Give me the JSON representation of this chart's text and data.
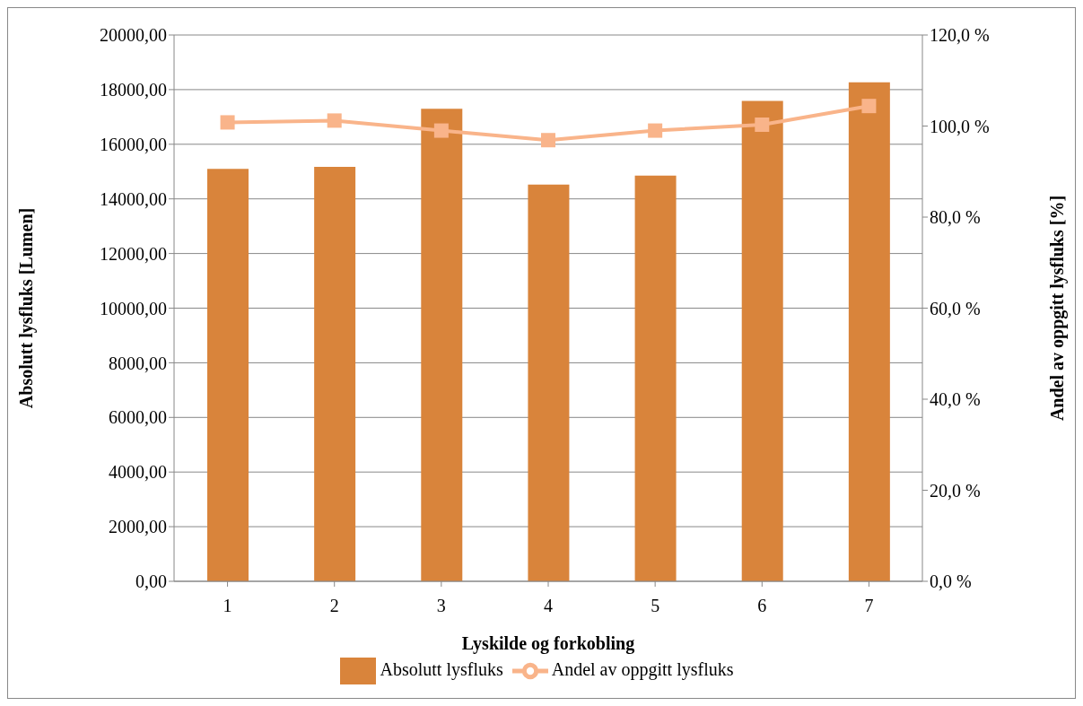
{
  "chart_data": {
    "type": "bar",
    "xlabel": "Lyskilde og forkobling",
    "ylabel": "Absolutt lysfluks [Lumen]",
    "y2label": "Andel av oppgitt lysfluks [%]",
    "categories": [
      "1",
      "2",
      "3",
      "4",
      "5",
      "6",
      "7"
    ],
    "series": [
      {
        "name": "Absolutt lysfluks",
        "color": "#d9843b",
        "values": [
          15100,
          15170,
          17300,
          14520,
          14850,
          17590,
          18270
        ]
      },
      {
        "name": "Andel av oppgitt lysfluks",
        "type": "line",
        "axis": "y2",
        "color": "#f9b48a",
        "marker": "square",
        "values": [
          100.8,
          101.2,
          99.0,
          96.9,
          99.0,
          100.3,
          104.4
        ]
      }
    ],
    "ylim": [
      0,
      20000
    ],
    "yticks": [
      {
        "value": 0,
        "label": "0,00"
      },
      {
        "value": 2000,
        "label": "2000,00"
      },
      {
        "value": 4000,
        "label": "4000,00"
      },
      {
        "value": 6000,
        "label": "6000,00"
      },
      {
        "value": 8000,
        "label": "8000,00"
      },
      {
        "value": 10000,
        "label": "10000,00"
      },
      {
        "value": 12000,
        "label": "12000,00"
      },
      {
        "value": 14000,
        "label": "14000,00"
      },
      {
        "value": 16000,
        "label": "16000,00"
      },
      {
        "value": 18000,
        "label": "18000,00"
      },
      {
        "value": 20000,
        "label": "20000,00"
      }
    ],
    "y2lim": [
      0,
      120
    ],
    "y2ticks": [
      {
        "value": 0,
        "label": "0,0 %"
      },
      {
        "value": 20,
        "label": "20,0 %"
      },
      {
        "value": 40,
        "label": "40,0 %"
      },
      {
        "value": 60,
        "label": "60,0 %"
      },
      {
        "value": 80,
        "label": "80,0 %"
      },
      {
        "value": 100,
        "label": "100,0 %"
      },
      {
        "value": 120,
        "label": "120,0 %"
      }
    ],
    "grid": "y",
    "legend": "bottom"
  }
}
